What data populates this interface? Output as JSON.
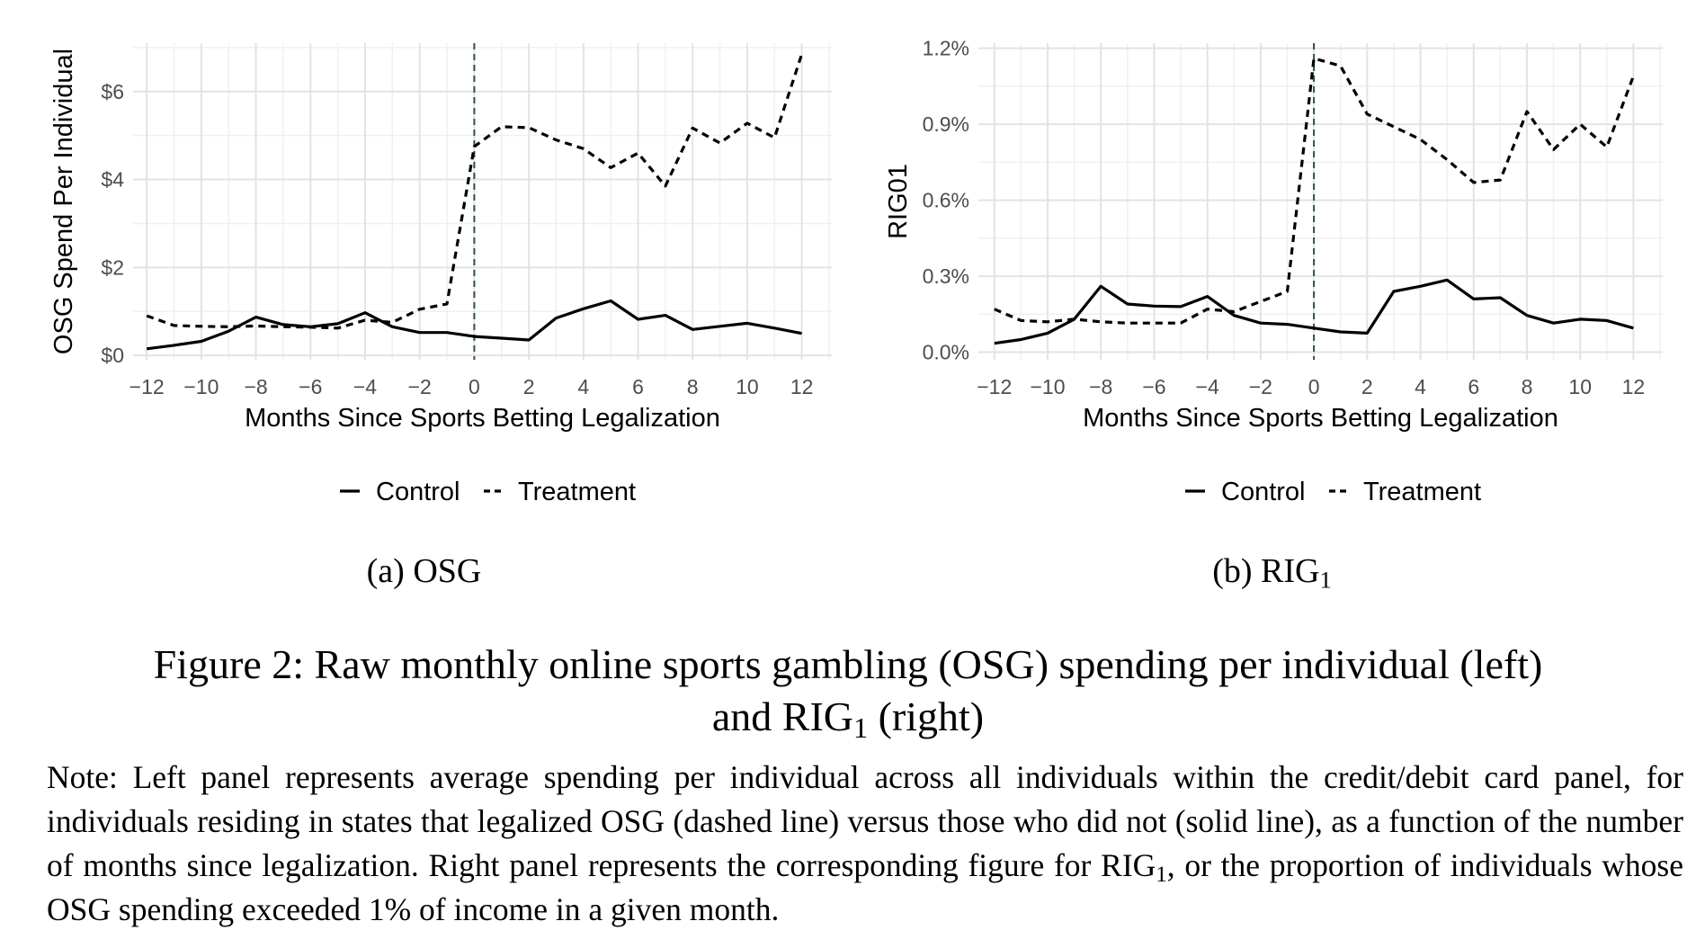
{
  "chart_data": [
    {
      "type": "line",
      "panel_label": "(a) OSG",
      "xlabel": "Months Since Sports Betting Legalization",
      "ylabel": "OSG Spend Per Individual",
      "xlim": [
        -12.5,
        13.1
      ],
      "ylim": [
        -0.1,
        7.1
      ],
      "x_ticks": [
        -12,
        -10,
        -8,
        -6,
        -4,
        -2,
        0,
        2,
        4,
        6,
        8,
        10,
        12
      ],
      "x_tick_labels": [
        "−12",
        "−10",
        "−8",
        "−6",
        "−4",
        "−2",
        "0",
        "2",
        "4",
        "6",
        "8",
        "10",
        "12"
      ],
      "y_ticks": [
        0,
        2,
        4,
        6
      ],
      "y_tick_labels": [
        "$0",
        "$2",
        "$4",
        "$6"
      ],
      "vline_x": 0,
      "x": [
        -12,
        -11,
        -10,
        -9,
        -8,
        -7,
        -6,
        -5,
        -4,
        -3,
        -2,
        -1,
        0,
        1,
        2,
        3,
        4,
        5,
        6,
        7,
        8,
        9,
        10,
        11,
        12
      ],
      "series": [
        {
          "name": "Control",
          "dash": "solid",
          "values": [
            0.15,
            0.23,
            0.32,
            0.55,
            0.87,
            0.7,
            0.65,
            0.72,
            0.97,
            0.65,
            0.52,
            0.52,
            0.43,
            0.39,
            0.35,
            0.85,
            1.06,
            1.24,
            0.82,
            0.91,
            0.59,
            0.66,
            0.73,
            0.62,
            0.5
          ]
        },
        {
          "name": "Treatment",
          "dash": "dashed",
          "values": [
            0.9,
            0.68,
            0.66,
            0.65,
            0.67,
            0.65,
            0.64,
            0.62,
            0.8,
            0.75,
            1.05,
            1.17,
            4.75,
            5.2,
            5.18,
            4.9,
            4.7,
            4.27,
            4.6,
            3.85,
            5.17,
            4.83,
            5.28,
            4.95,
            6.85
          ]
        }
      ],
      "legend": [
        "Control",
        "Treatment"
      ],
      "legend_position": "bottom"
    },
    {
      "type": "line",
      "panel_label_main": "(b) RIG",
      "panel_label_sub": "1",
      "xlabel": "Months Since Sports Betting Legalization",
      "ylabel": "RIG01",
      "xlim": [
        -12.6,
        13.1
      ],
      "ylim": [
        -0.0003,
        0.0122
      ],
      "x_ticks": [
        -12,
        -10,
        -8,
        -6,
        -4,
        -2,
        0,
        2,
        4,
        6,
        8,
        10,
        12
      ],
      "x_tick_labels": [
        "−12",
        "−10",
        "−8",
        "−6",
        "−4",
        "−2",
        "0",
        "2",
        "4",
        "6",
        "8",
        "10",
        "12"
      ],
      "y_ticks": [
        0,
        0.003,
        0.006,
        0.009,
        0.012
      ],
      "y_tick_labels": [
        "0.0%",
        "0.3%",
        "0.6%",
        "0.9%",
        "1.2%"
      ],
      "vline_x": 0,
      "x": [
        -12,
        -11,
        -10,
        -9,
        -8,
        -7,
        -6,
        -5,
        -4,
        -3,
        -2,
        -1,
        0,
        1,
        2,
        3,
        4,
        5,
        6,
        7,
        8,
        9,
        10,
        11,
        12
      ],
      "series": [
        {
          "name": "Control",
          "dash": "solid",
          "values": [
            0.00035,
            0.0005,
            0.00075,
            0.0013,
            0.0026,
            0.0019,
            0.00182,
            0.0018,
            0.0022,
            0.00145,
            0.00115,
            0.0011,
            0.00095,
            0.0008,
            0.00075,
            0.0024,
            0.0026,
            0.00285,
            0.0021,
            0.00215,
            0.00145,
            0.00115,
            0.0013,
            0.00125,
            0.00095
          ]
        },
        {
          "name": "Treatment",
          "dash": "dashed",
          "values": [
            0.0017,
            0.00125,
            0.0012,
            0.0013,
            0.0012,
            0.00115,
            0.00115,
            0.00115,
            0.0017,
            0.0016,
            0.002,
            0.0024,
            0.0116,
            0.0113,
            0.0094,
            0.0089,
            0.0084,
            0.0076,
            0.0067,
            0.0068,
            0.0095,
            0.008,
            0.009,
            0.0081,
            0.0109
          ]
        }
      ],
      "legend": [
        "Control",
        "Treatment"
      ],
      "legend_position": "bottom"
    }
  ],
  "caption": {
    "line1": "Figure 2: Raw monthly online sports gambling (OSG) spending per individual (left)",
    "line2_pre": "and RIG",
    "line2_sub": "1",
    "line2_post": " (right)"
  },
  "note": {
    "pre": "Note: Left panel represents average spending per individual across all individuals within the credit/debit card panel, for individuals residing in states that legalized OSG (dashed line) versus those who did not (solid line), as a function of the number of months since legalization. Right panel represents the corresponding figure for RIG",
    "sub": "1",
    "post": ", or the proportion of individuals whose OSG spending exceeded 1% of income in a given month."
  }
}
